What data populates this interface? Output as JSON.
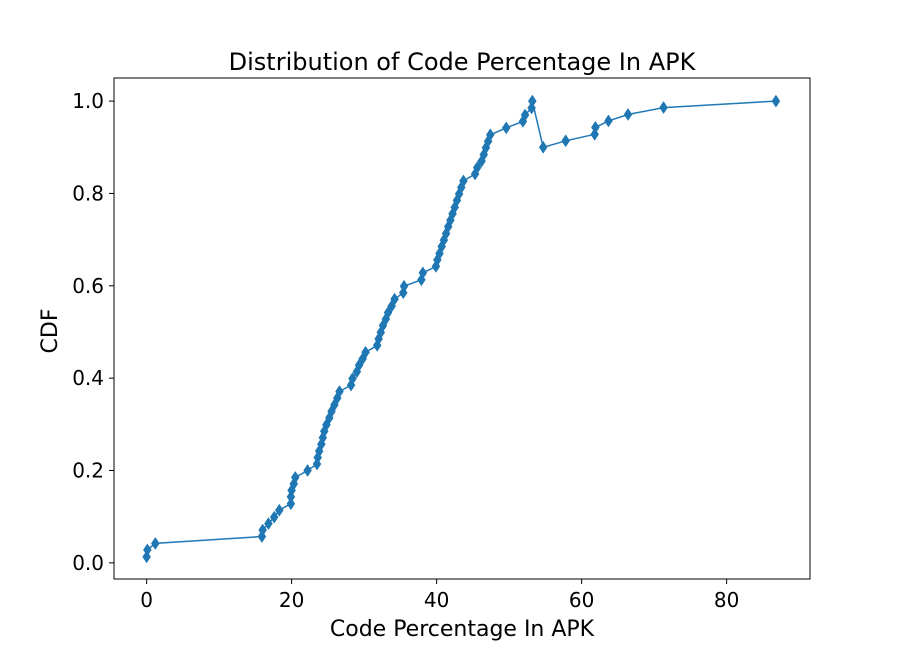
{
  "chart_data": {
    "type": "line",
    "title": "Distribution of Code Percentage In APK",
    "xlabel": "Code Percentage In APK",
    "ylabel": "CDF",
    "xlim": [
      -4.5,
      91.5
    ],
    "ylim": [
      -0.035,
      1.05
    ],
    "xticks": [
      0,
      20,
      40,
      60,
      80
    ],
    "yticks": [
      0.0,
      0.2,
      0.4,
      0.6,
      0.8,
      1.0
    ],
    "ytick_labels": [
      "0.0",
      "0.2",
      "0.4",
      "0.6",
      "0.8",
      "1.0"
    ],
    "grid": false,
    "marker": "diamond",
    "color": "#1f77b4",
    "series": [
      {
        "x": [
          0.0,
          0.1,
          1.2,
          15.9,
          16.0,
          16.8,
          17.6,
          18.3,
          19.9,
          19.9,
          20.0,
          20.3,
          20.5,
          22.2,
          23.5,
          23.6,
          23.8,
          24.1,
          24.3,
          24.5,
          24.8,
          25.2,
          25.5,
          25.9,
          26.3,
          26.6,
          28.2,
          28.4,
          29.0,
          29.3,
          29.8,
          30.2,
          31.8,
          32.0,
          32.3,
          32.6,
          33.0,
          33.3,
          33.8,
          34.2,
          35.4,
          35.5,
          37.9,
          38.1,
          39.9,
          40.1,
          40.4,
          40.7,
          41.0,
          41.3,
          41.6,
          41.9,
          42.2,
          42.5,
          42.8,
          43.1,
          43.4,
          43.7,
          45.3,
          45.6,
          46.2,
          46.5,
          46.8,
          47.1,
          47.4,
          49.6,
          51.9,
          52.2,
          53.1,
          53.2,
          54.7,
          57.8,
          61.8,
          61.9,
          63.7,
          66.4,
          71.3,
          86.8
        ],
        "y": [
          0.013,
          0.028,
          0.042,
          0.057,
          0.071,
          0.085,
          0.099,
          0.114,
          0.128,
          0.143,
          0.157,
          0.171,
          0.185,
          0.2,
          0.214,
          0.228,
          0.242,
          0.257,
          0.271,
          0.285,
          0.299,
          0.314,
          0.328,
          0.342,
          0.357,
          0.371,
          0.385,
          0.399,
          0.414,
          0.428,
          0.442,
          0.456,
          0.471,
          0.485,
          0.499,
          0.514,
          0.528,
          0.542,
          0.556,
          0.571,
          0.585,
          0.599,
          0.613,
          0.628,
          0.642,
          0.656,
          0.67,
          0.685,
          0.699,
          0.713,
          0.728,
          0.742,
          0.756,
          0.77,
          0.785,
          0.799,
          0.813,
          0.827,
          0.842,
          0.856,
          0.87,
          0.884,
          0.899,
          0.913,
          0.927,
          0.942,
          0.956,
          0.97,
          0.985,
          1.0,
          0.9,
          0.914,
          0.928,
          0.943,
          0.957,
          0.971,
          0.986,
          1.0
        ]
      }
    ]
  }
}
